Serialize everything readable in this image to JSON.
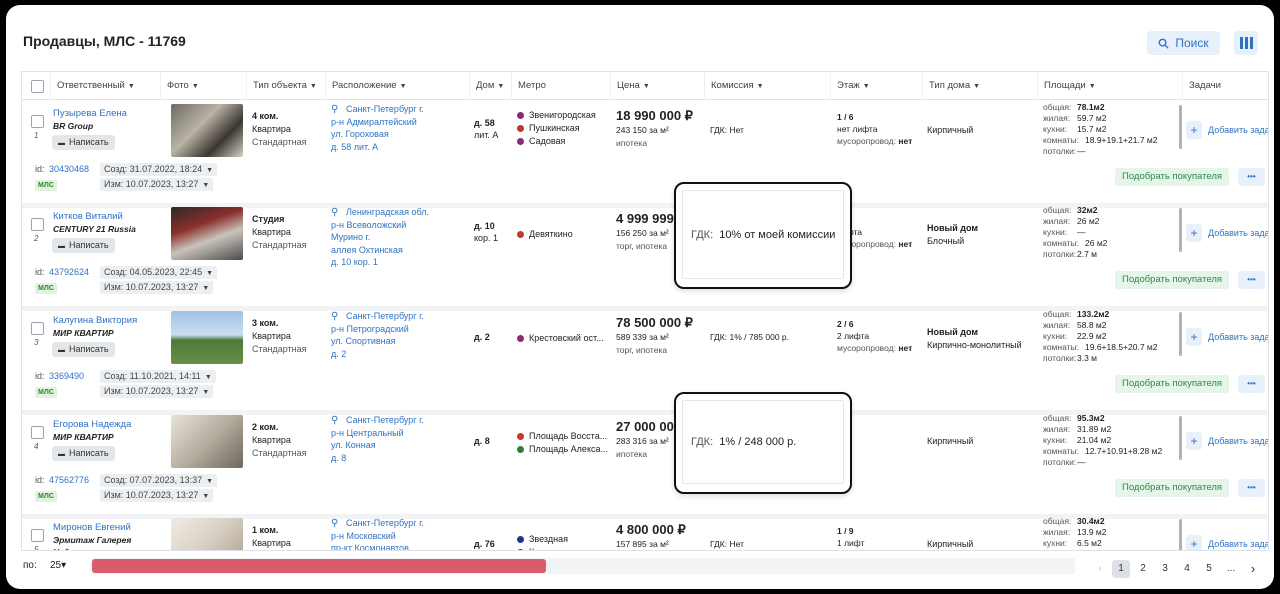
{
  "page": {
    "title": "Продавцы, МЛС - 11769",
    "search_label": "Поиск"
  },
  "headers": [
    "Ответственный",
    "Фото",
    "Тип объекта",
    "Расположение",
    "Дом",
    "Метро",
    "Цена",
    "Комиссия",
    "Этаж",
    "Тип дома",
    "Площади",
    "Задачи"
  ],
  "rows": [
    {
      "num": "1",
      "agent": "Пузырева Елена",
      "agency": "BR Group",
      "agency2": "",
      "write": "Написать",
      "type1": "4 ком.",
      "type2": "Квартира",
      "type3": "Стандартная",
      "loc": [
        "Санкт-Петербург г.",
        "р-н Адмиралтейский",
        "ул. Гороховая",
        "д. 58 лит. А"
      ],
      "house1": "д. 58",
      "house2": "лит. А",
      "metro": [
        {
          "name": "Звенигородская",
          "color": "#8b2a72"
        },
        {
          "name": "Пушкинская",
          "color": "#c0392b"
        },
        {
          "name": "Садовая",
          "color": "#8b2a72"
        }
      ],
      "price": "18 990 000 ₽",
      "ppm": "243 150 за м²",
      "pay": "ипотека",
      "commission": "ГДК:  Нет",
      "floor1": "1 / 6",
      "floor2": "нет лифта",
      "floor3": "мусоропровод:",
      "floor3v": "нет",
      "htype1": "Кирпичный",
      "htype2": "",
      "areas": [
        [
          "общая:",
          "78.1м2"
        ],
        [
          "жилая:",
          "59.7 м2"
        ],
        [
          "кухни:",
          "15.7 м2"
        ],
        [
          "комнаты:",
          "18.9+19.1+21.7 м2"
        ],
        [
          "потолки:",
          "—"
        ]
      ],
      "task": "Добавить зада",
      "id_label": "id:",
      "id": "30430468",
      "created": "Созд: 31.07.2022, 18:24",
      "changed": "Изм: 10.07.2023, 13:27",
      "mls": "МЛС",
      "pick": "Подобрать покупателя"
    },
    {
      "num": "2",
      "agent": "Китков Виталий",
      "agency": "CENTURY 21 Russia",
      "agency2": "",
      "write": "Написать",
      "type1": "Студия",
      "type2": "Квартира",
      "type3": "Стандартная",
      "loc": [
        "Ленинградская обл.",
        "р-н Всеволожский",
        "Мурино г.",
        "аллея Охтинская",
        "д. 10 кор. 1"
      ],
      "house1": "д. 10",
      "house2": "кор. 1",
      "metro": [
        {
          "name": "Девяткино",
          "color": "#c0392b"
        }
      ],
      "price": "4 999 999 ₽",
      "ppm": "156 250 за м²",
      "pay": "торг, ипотека",
      "commission": "",
      "floor1": "/ 25",
      "floor2": "лифта",
      "floor3": "мусоропровод:",
      "floor3v": "нет",
      "htype1": "Новый дом",
      "htype2": "Блочный",
      "areas": [
        [
          "общая:",
          "32м2"
        ],
        [
          "жилая:",
          "26 м2"
        ],
        [
          "кухни:",
          "—"
        ],
        [
          "комнаты:",
          "26 м2"
        ],
        [
          "потолки:",
          "2.7 м"
        ]
      ],
      "task": "Добавить зада",
      "id_label": "id:",
      "id": "43792624",
      "created": "Созд: 04.05.2023, 22:45",
      "changed": "Изм: 10.07.2023, 13:27",
      "mls": "МЛС",
      "pick": "Подобрать покупателя"
    },
    {
      "num": "3",
      "agent": "Калугина Виктория",
      "agency": "МИР КВАРТИР",
      "agency2": "",
      "write": "Написать",
      "type1": "3 ком.",
      "type2": "Квартира",
      "type3": "Стандартная",
      "loc": [
        "Санкт-Петербург г.",
        "р-н Петроградский",
        "ул. Спортивная",
        "д. 2"
      ],
      "house1": "д. 2",
      "house2": "",
      "metro": [
        {
          "name": "Крестовский ост...",
          "color": "#8b2a72"
        }
      ],
      "price": "78 500 000 ₽",
      "ppm": "589 339 за м²",
      "pay": "торг, ипотека",
      "commission": "ГДК:  1% / 785 000 р.",
      "floor1": "2 / 6",
      "floor2": "2 лифта",
      "floor3": "мусоропровод:",
      "floor3v": "нет",
      "htype1": "Новый дом",
      "htype2": "Кирпично-монолитный",
      "areas": [
        [
          "общая:",
          "133.2м2"
        ],
        [
          "жилая:",
          "58.8 м2"
        ],
        [
          "кухни:",
          "22.9 м2"
        ],
        [
          "комнаты:",
          "19.6+18.5+20.7 м2"
        ],
        [
          "потолки:",
          "3.3 м"
        ]
      ],
      "task": "Добавить зада",
      "id_label": "id:",
      "id": "3369490",
      "created": "Созд: 11.10.2021, 14:11",
      "changed": "Изм: 10.07.2023, 13:27",
      "mls": "МЛС",
      "pick": "Подобрать покупателя"
    },
    {
      "num": "4",
      "agent": "Егорова Надежда",
      "agency": "МИР КВАРТИР",
      "agency2": "",
      "write": "Написать",
      "type1": "2 ком.",
      "type2": "Квартира",
      "type3": "Стандартная",
      "loc": [
        "Санкт-Петербург г.",
        "р-н Центральный",
        "ул. Конная",
        "д. 8"
      ],
      "house1": "д. 8",
      "house2": "",
      "metro": [
        {
          "name": "Площадь Восста...",
          "color": "#c0392b"
        },
        {
          "name": "Площадь Алекса...",
          "color": "#2e7d32"
        }
      ],
      "price": "27 000 000",
      "ppm": "283 316 за м²",
      "pay": "ипотека",
      "commission": "",
      "floor1": "",
      "floor2": "от",
      "floor3": "",
      "floor3v": "нет",
      "htype1": "Кирпичный",
      "htype2": "",
      "areas": [
        [
          "общая:",
          "95.3м2"
        ],
        [
          "жилая:",
          "31.89 м2"
        ],
        [
          "кухни:",
          "21.04 м2"
        ],
        [
          "комнаты:",
          "12.7+10.91+8.28 м2"
        ],
        [
          "потолки:",
          "—"
        ]
      ],
      "task": "Добавить зада",
      "id_label": "id:",
      "id": "47562776",
      "created": "Созд: 07.07.2023, 13:37",
      "changed": "Изм: 10.07.2023, 13:27",
      "mls": "МЛС",
      "pick": "Подобрать покупателя"
    },
    {
      "num": "5",
      "agent": "Миронов Евгений",
      "agency": "Эрмитаж Галерея",
      "agency2": "Недвижимости",
      "write": "",
      "type1": "1 ком.",
      "type2": "Квартира",
      "type3": "",
      "loc": [
        "Санкт-Петербург г.",
        "р-н Московский",
        "пр-кт Космонавтов"
      ],
      "house1": "д. 76",
      "house2": "",
      "metro": [
        {
          "name": "Звездная",
          "color": "#1a3a8a"
        },
        {
          "name": "Купчино",
          "color": "#1a3a8a"
        }
      ],
      "price": "4 800 000 ₽",
      "ppm": "157 895 за м²",
      "pay": "",
      "commission": "ГДК:  Нет",
      "floor1": "1 / 9",
      "floor2": "1 лифт",
      "floor3": "",
      "floor3v": "",
      "htype1": "Кирпичный",
      "htype2": "",
      "areas": [
        [
          "общая:",
          "30.4м2"
        ],
        [
          "жилая:",
          "13.9 м2"
        ],
        [
          "кухни:",
          "6.5 м2"
        ]
      ],
      "task": "Добавить зада",
      "id_label": "",
      "id": "",
      "created": "",
      "changed": "",
      "mls": "",
      "pick": ""
    }
  ],
  "popups": [
    {
      "label": "ГДК:",
      "value": "10% от моей комиссии"
    },
    {
      "label": "ГДК:",
      "value": "1% / 248 000 р."
    }
  ],
  "footer": {
    "per_page_label": "по:",
    "per_page": "25",
    "pages": [
      "1",
      "2",
      "3",
      "4",
      "5",
      "..."
    ]
  }
}
